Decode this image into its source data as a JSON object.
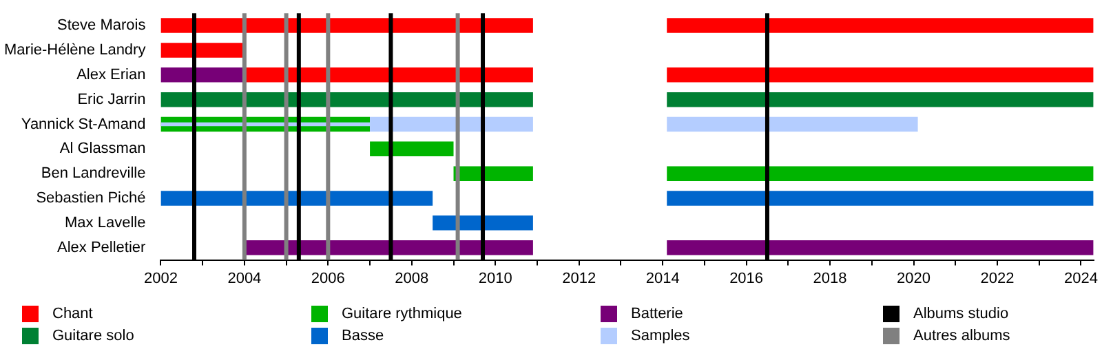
{
  "chart_data": {
    "type": "bar",
    "orientation": "horizontal",
    "categories": [
      "Steve Marois",
      "Marie-Hélène Landry",
      "Alex Erian",
      "Eric Jarrin",
      "Yannick St-Amand",
      "Al Glassman",
      "Ben Landreville",
      "Sebastien Piché",
      "Max Lavelle",
      "Alex Pelletier"
    ],
    "series": [
      {
        "name": "Chant",
        "color": "#ff0000",
        "base": [
          2002,
          2002,
          2004,
          null,
          null,
          null,
          null,
          null,
          null,
          null
        ],
        "values": [
          8.9,
          2.0,
          6.9,
          null,
          null,
          null,
          null,
          null,
          null,
          null
        ]
      },
      {
        "color": "#ff0000",
        "base": [
          2014.1,
          null,
          2014.1,
          null,
          null,
          null,
          null,
          null,
          null,
          null
        ],
        "values": [
          10.2,
          null,
          10.2,
          null,
          null,
          null,
          null,
          null,
          null,
          null
        ]
      },
      {
        "name": "Guitare solo",
        "color": "#008033",
        "base": [
          null,
          null,
          null,
          2002,
          null,
          null,
          null,
          null,
          null,
          null
        ],
        "values": [
          null,
          null,
          null,
          8.9,
          null,
          null,
          null,
          null,
          null,
          null
        ]
      },
      {
        "color": "#008033",
        "base": [
          null,
          null,
          null,
          2014.1,
          null,
          null,
          null,
          null,
          null,
          null
        ],
        "values": [
          null,
          null,
          null,
          10.2,
          null,
          null,
          null,
          null,
          null,
          null
        ]
      },
      {
        "name": "Guitare rythmique",
        "color": "#00b400",
        "base": [
          null,
          null,
          null,
          null,
          2002,
          2007,
          2009,
          null,
          null,
          null
        ],
        "values": [
          null,
          null,
          null,
          null,
          5.0,
          2.0,
          1.9,
          null,
          null,
          null
        ]
      },
      {
        "color": "#00b400",
        "base": [
          null,
          null,
          null,
          null,
          null,
          null,
          2014.1,
          null,
          null,
          null
        ],
        "values": [
          null,
          null,
          null,
          null,
          null,
          null,
          10.2,
          null,
          null,
          null
        ]
      },
      {
        "name": "Basse",
        "color": "#0066cc",
        "base": [
          null,
          null,
          null,
          null,
          null,
          null,
          null,
          2002,
          2008.5,
          null
        ],
        "values": [
          null,
          null,
          null,
          null,
          null,
          null,
          null,
          6.5,
          2.4,
          null
        ]
      },
      {
        "color": "#0066cc",
        "base": [
          null,
          null,
          null,
          null,
          null,
          null,
          null,
          2014.1,
          null,
          null
        ],
        "values": [
          null,
          null,
          null,
          null,
          null,
          null,
          null,
          10.2,
          null,
          null
        ]
      },
      {
        "name": "Batterie",
        "color": "#770077",
        "base": [
          null,
          null,
          2002,
          null,
          null,
          null,
          null,
          null,
          null,
          2004
        ],
        "values": [
          null,
          null,
          2.0,
          null,
          null,
          null,
          null,
          null,
          null,
          6.9
        ]
      },
      {
        "color": "#770077",
        "base": [
          null,
          null,
          null,
          null,
          null,
          null,
          null,
          null,
          null,
          2014.1
        ],
        "values": [
          null,
          null,
          null,
          null,
          null,
          null,
          null,
          null,
          null,
          10.2
        ]
      },
      {
        "name": "Samples",
        "color": "#b4cdff",
        "base": [
          null,
          null,
          null,
          null,
          2007,
          null,
          null,
          null,
          null,
          null
        ],
        "values": [
          null,
          null,
          null,
          null,
          3.9,
          null,
          null,
          null,
          null,
          null
        ]
      },
      {
        "color": "#b4cdff",
        "base": [
          null,
          null,
          null,
          null,
          2014.1,
          null,
          null,
          null,
          null,
          null
        ],
        "values": [
          null,
          null,
          null,
          null,
          6.0,
          null,
          null,
          null,
          null,
          null
        ]
      },
      {
        "color": "#b4cdff",
        "base": [
          null,
          null,
          null,
          null,
          2002,
          null,
          null,
          null,
          null,
          null
        ],
        "values": [
          null,
          null,
          null,
          null,
          5.0,
          null,
          null,
          null,
          null,
          null
        ]
      }
    ],
    "xlim": [
      2002,
      2024.3
    ],
    "xticks": [
      2002,
      {
        "value": 2003,
        "label": null
      },
      2004,
      {
        "value": 2005,
        "label": null
      },
      2006,
      {
        "value": 2007,
        "label": null
      },
      2008,
      {
        "value": 2009,
        "label": null
      },
      2010,
      {
        "value": 2011,
        "label": null
      },
      2012,
      {
        "value": 2013,
        "label": null
      },
      2014,
      {
        "value": 2015,
        "label": null
      },
      2016,
      {
        "value": 2017,
        "label": null
      },
      2018,
      {
        "value": 2019,
        "label": null
      },
      2020,
      {
        "value": 2021,
        "label": null
      },
      2022,
      {
        "value": 2023,
        "label": null
      },
      2024
    ],
    "ref_lines": [
      {
        "axis": "x",
        "value": 2002.8,
        "color": "#000000",
        "label": "Albums studio"
      },
      {
        "axis": "x",
        "value": 2005.3,
        "color": "#000000"
      },
      {
        "axis": "x",
        "value": 2007.5,
        "color": "#000000"
      },
      {
        "axis": "x",
        "value": 2009.7,
        "color": "#000000"
      },
      {
        "axis": "x",
        "value": 2016.5,
        "color": "#000000"
      },
      {
        "axis": "x",
        "value": 2004.0,
        "color": "#808080",
        "label": "Autres albums"
      },
      {
        "axis": "x",
        "value": 2005.0,
        "color": "#808080"
      },
      {
        "axis": "x",
        "value": 2006.0,
        "color": "#808080"
      },
      {
        "axis": "x",
        "value": 2009.1,
        "color": "#808080"
      }
    ],
    "grid": false,
    "legend": "bottom"
  }
}
